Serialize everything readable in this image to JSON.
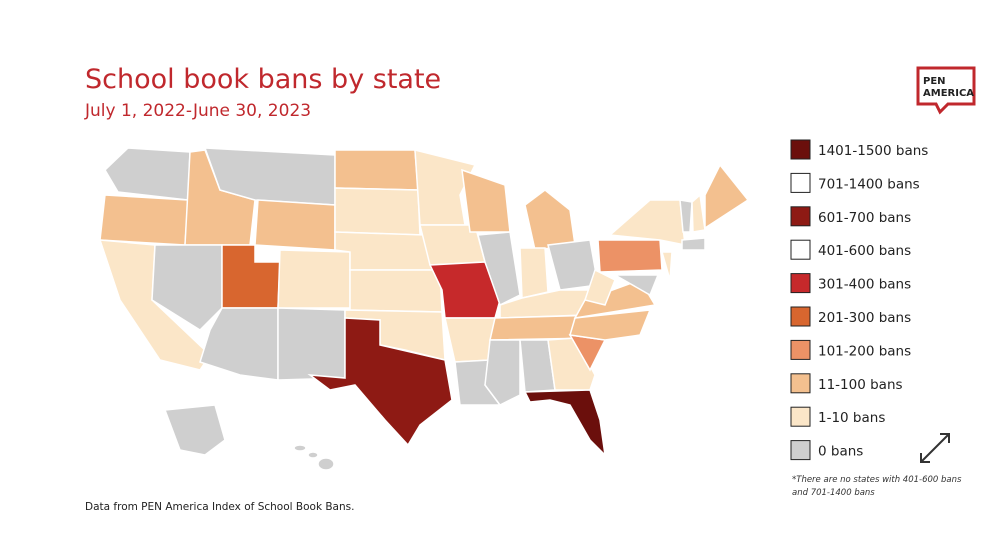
{
  "header": {
    "title": "School book bans by state",
    "subtitle": "July 1, 2022-June 30, 2023"
  },
  "logo": {
    "line1": "PEN",
    "line2": "AMERICA"
  },
  "legend": [
    {
      "label": "1401-1500 bans",
      "color": "#6b0f0c"
    },
    {
      "label": "701-1400 bans",
      "color": "#ffffff"
    },
    {
      "label": "601-700 bans",
      "color": "#8e1a14"
    },
    {
      "label": "401-600 bans",
      "color": "#ffffff"
    },
    {
      "label": "301-400 bans",
      "color": "#c6292b"
    },
    {
      "label": "201-300 bans",
      "color": "#d8662f"
    },
    {
      "label": "101-200 bans",
      "color": "#ec9266"
    },
    {
      "label": "11-100 bans",
      "color": "#f3c08f"
    },
    {
      "label": "1-10 bans",
      "color": "#fbe6c8"
    },
    {
      "label": "0 bans",
      "color": "#cfcfcf"
    }
  ],
  "footnote": {
    "line1": "*There are no states with 401-600 bans",
    "line2": "and 701-1400 bans"
  },
  "source": "Data from PEN America Index of School Book Bans."
}
